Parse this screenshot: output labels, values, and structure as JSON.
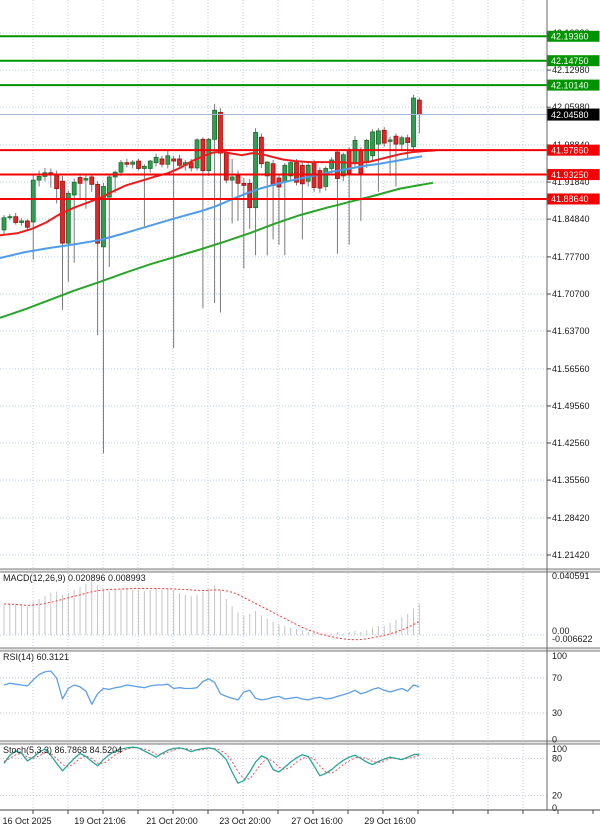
{
  "colors": {
    "up_candle": "#2f9e4e",
    "up_border": "#1d6b2f",
    "down_candle": "#e02626",
    "down_border": "#9c1313",
    "wick": "#7a7a7a",
    "ma_fast": "#ef1c1c",
    "ma_mid": "#4f9bee",
    "ma_slow": "#28a428",
    "resistance": "#009500",
    "support": "#f50000",
    "price_line": "#aab8d8",
    "macd_bar": "#c4c4c4",
    "macd_signal": "#ff3838",
    "rsi_line": "#5e9fe8",
    "stoch_k": "#26a69a",
    "stoch_d": "#ff5050",
    "grid": "#b9ccec",
    "axis_text": "#1a1a1a",
    "badge_text": "#ffffff",
    "current_badge_bg": "#000000",
    "separator": "#e6e6e6",
    "separator_edge": "#7d7d7d"
  },
  "chart_data": [
    {
      "type": "candlestick",
      "x_labels": [
        "16 Oct 2025",
        "19 Oct 21:06",
        "21 Oct 20:00",
        "23 Oct 20:00",
        "27 Oct 16:00",
        "29 Oct 16:00"
      ],
      "y_ticks": [
        "42.19980",
        "42.12980",
        "42.05980",
        "41.98840",
        "41.91840",
        "41.84840",
        "41.77700",
        "41.70700",
        "41.63700",
        "41.56560",
        "41.49560",
        "41.42560",
        "41.35560",
        "41.28420",
        "41.21420"
      ],
      "resistance_lines": [
        {
          "label": "42.19360",
          "price": 42.1936
        },
        {
          "label": "42.14750",
          "price": 42.1475
        },
        {
          "label": "42.10140",
          "price": 42.1014
        }
      ],
      "support_lines": [
        {
          "label": "41.97860",
          "price": 41.9786
        },
        {
          "label": "41.93250",
          "price": 41.9325
        },
        {
          "label": "41.88640",
          "price": 41.8864
        }
      ],
      "current_price": {
        "label": "42.04580",
        "price": 42.0458
      },
      "candles": [
        [
          41.828,
          41.856,
          41.82,
          41.851
        ],
        [
          41.851,
          41.858,
          41.846,
          41.853
        ],
        [
          41.853,
          41.86,
          41.838,
          41.842
        ],
        [
          41.842,
          41.85,
          41.836,
          41.845
        ],
        [
          41.845,
          41.848,
          41.828,
          41.833
        ],
        [
          41.843,
          41.932,
          41.772,
          41.922
        ],
        [
          41.922,
          41.94,
          41.91,
          41.929
        ],
        [
          41.929,
          41.945,
          41.92,
          41.936
        ],
        [
          41.936,
          41.944,
          41.908,
          41.933
        ],
        [
          41.933,
          41.94,
          41.878,
          41.906
        ],
        [
          41.92,
          41.93,
          41.677,
          41.803
        ],
        [
          41.803,
          41.902,
          41.73,
          41.897
        ],
        [
          41.894,
          41.925,
          41.766,
          41.918
        ],
        [
          41.927,
          41.935,
          41.888,
          41.916
        ],
        [
          41.922,
          41.932,
          41.868,
          41.925
        ],
        [
          41.928,
          41.934,
          41.9,
          41.914
        ],
        [
          41.914,
          41.92,
          41.629,
          41.803
        ],
        [
          41.796,
          41.917,
          41.406,
          41.91
        ],
        [
          41.89,
          41.932,
          41.758,
          41.928
        ],
        [
          41.928,
          41.94,
          41.898,
          41.937
        ],
        [
          41.937,
          41.96,
          41.93,
          41.955
        ],
        [
          41.955,
          41.962,
          41.946,
          41.952
        ],
        [
          41.952,
          41.96,
          41.944,
          41.956
        ],
        [
          41.958,
          41.963,
          41.94,
          41.944
        ],
        [
          41.944,
          41.952,
          41.835,
          41.948
        ],
        [
          41.944,
          41.96,
          41.936,
          41.958
        ],
        [
          41.955,
          41.972,
          41.948,
          41.965
        ],
        [
          41.962,
          41.968,
          41.946,
          41.952
        ],
        [
          41.952,
          41.978,
          41.944,
          41.968
        ],
        [
          41.962,
          41.968,
          41.605,
          41.958
        ],
        [
          41.962,
          41.97,
          41.944,
          41.95
        ],
        [
          41.95,
          41.96,
          41.94,
          41.955
        ],
        [
          41.955,
          41.962,
          41.938,
          41.945
        ],
        [
          41.945,
          42.001,
          41.94,
          41.998
        ],
        [
          41.999,
          42.003,
          41.68,
          41.94
        ],
        [
          41.94,
          42.002,
          41.93,
          41.999
        ],
        [
          41.999,
          42.066,
          41.69,
          42.054
        ],
        [
          42.05,
          42.058,
          41.672,
          41.973
        ],
        [
          41.973,
          41.98,
          41.916,
          41.922
        ],
        [
          41.922,
          41.962,
          41.84,
          41.928
        ],
        [
          41.93,
          41.94,
          41.845,
          41.916
        ],
        [
          41.916,
          41.926,
          41.755,
          41.912
        ],
        [
          41.916,
          41.924,
          41.83,
          41.87
        ],
        [
          41.87,
          42.02,
          41.78,
          42.012
        ],
        [
          42.003,
          42.01,
          41.945,
          41.953
        ],
        [
          41.93,
          41.958,
          41.78,
          41.956
        ],
        [
          41.953,
          41.96,
          41.81,
          41.912
        ],
        [
          41.926,
          41.932,
          41.8,
          41.909
        ],
        [
          41.918,
          41.954,
          41.78,
          41.95
        ],
        [
          41.93,
          41.96,
          41.922,
          41.955
        ],
        [
          41.955,
          41.962,
          41.912,
          41.918
        ],
        [
          41.95,
          41.956,
          41.81,
          41.915
        ],
        [
          41.92,
          41.954,
          41.91,
          41.95
        ],
        [
          41.955,
          41.96,
          41.9,
          41.908
        ],
        [
          41.94,
          41.946,
          41.898,
          41.907
        ],
        [
          41.91,
          41.948,
          41.902,
          41.944
        ],
        [
          41.944,
          41.965,
          41.935,
          41.96
        ],
        [
          41.975,
          41.98,
          41.783,
          41.925
        ],
        [
          41.93,
          41.974,
          41.92,
          41.97
        ],
        [
          41.978,
          41.984,
          41.8,
          41.935
        ],
        [
          41.955,
          42.005,
          41.945,
          41.997
        ],
        [
          41.978,
          41.984,
          41.845,
          41.935
        ],
        [
          41.955,
          42.0,
          41.945,
          41.997
        ],
        [
          41.968,
          42.018,
          41.958,
          42.013
        ],
        [
          41.99,
          42.02,
          41.9,
          42.015
        ],
        [
          42.016,
          42.022,
          41.985,
          41.992
        ],
        [
          41.995,
          42.004,
          41.93,
          41.998
        ],
        [
          42.005,
          42.01,
          41.91,
          41.99
        ],
        [
          41.99,
          42.006,
          41.98,
          42.002
        ],
        [
          42.002,
          42.008,
          41.962,
          41.993
        ],
        [
          41.985,
          42.083,
          41.978,
          42.077
        ],
        [
          42.073,
          42.078,
          42.01,
          42.046
        ]
      ],
      "ma_fast_red": [
        [
          0,
          41.818
        ],
        [
          18,
          41.822
        ],
        [
          32,
          41.83
        ],
        [
          46,
          41.842
        ],
        [
          60,
          41.858
        ],
        [
          74,
          41.87
        ],
        [
          88,
          41.88
        ],
        [
          100,
          41.888
        ],
        [
          112,
          41.9
        ],
        [
          126,
          41.912
        ],
        [
          140,
          41.92
        ],
        [
          154,
          41.928
        ],
        [
          168,
          41.935
        ],
        [
          180,
          41.945
        ],
        [
          192,
          41.958
        ],
        [
          204,
          41.968
        ],
        [
          213,
          41.974
        ],
        [
          222,
          41.976
        ],
        [
          232,
          41.972
        ],
        [
          242,
          41.969
        ],
        [
          252,
          41.973
        ],
        [
          262,
          41.971
        ],
        [
          272,
          41.966
        ],
        [
          283,
          41.961
        ],
        [
          295,
          41.958
        ],
        [
          310,
          41.956
        ],
        [
          325,
          41.956
        ],
        [
          340,
          41.956
        ],
        [
          355,
          41.954
        ],
        [
          370,
          41.957
        ],
        [
          385,
          41.964
        ],
        [
          400,
          41.971
        ],
        [
          412,
          41.975
        ],
        [
          425,
          41.977
        ],
        [
          435,
          41.978
        ]
      ],
      "ma_mid_blue": [
        [
          0,
          41.775
        ],
        [
          25,
          41.786
        ],
        [
          50,
          41.794
        ],
        [
          75,
          41.801
        ],
        [
          100,
          41.809
        ],
        [
          125,
          41.822
        ],
        [
          150,
          41.836
        ],
        [
          175,
          41.85
        ],
        [
          200,
          41.863
        ],
        [
          215,
          41.872
        ],
        [
          230,
          41.884
        ],
        [
          245,
          41.896
        ],
        [
          260,
          41.906
        ],
        [
          275,
          41.914
        ],
        [
          290,
          41.921
        ],
        [
          305,
          41.927
        ],
        [
          320,
          41.933
        ],
        [
          335,
          41.939
        ],
        [
          350,
          41.944
        ],
        [
          365,
          41.949
        ],
        [
          380,
          41.953
        ],
        [
          395,
          41.958
        ],
        [
          410,
          41.963
        ],
        [
          422,
          41.967
        ]
      ],
      "ma_slow_green": [
        [
          0,
          41.662
        ],
        [
          25,
          41.678
        ],
        [
          50,
          41.696
        ],
        [
          75,
          41.714
        ],
        [
          100,
          41.73
        ],
        [
          125,
          41.747
        ],
        [
          150,
          41.763
        ],
        [
          175,
          41.777
        ],
        [
          200,
          41.791
        ],
        [
          225,
          41.806
        ],
        [
          250,
          41.822
        ],
        [
          275,
          41.84
        ],
        [
          300,
          41.856
        ],
        [
          325,
          41.869
        ],
        [
          350,
          41.881
        ],
        [
          375,
          41.893
        ],
        [
          400,
          41.906
        ],
        [
          418,
          41.912
        ],
        [
          433,
          41.917
        ]
      ]
    },
    {
      "type": "bar",
      "name": "MACD",
      "label": "MACD(12,26,9) 0.020896 0.008993",
      "axis_labels": [
        "0.040591",
        "0.00",
        "-0.006622"
      ],
      "histogram": [
        0.02,
        0.021,
        0.021,
        0.02,
        0.019,
        0.022,
        0.024,
        0.026,
        0.028,
        0.029,
        0.027,
        0.028,
        0.03,
        0.032,
        0.034,
        0.036,
        0.033,
        0.03,
        0.029,
        0.03,
        0.031,
        0.031,
        0.03,
        0.03,
        0.029,
        0.03,
        0.031,
        0.03,
        0.031,
        0.03,
        0.028,
        0.027,
        0.026,
        0.027,
        0.029,
        0.031,
        0.033,
        0.03,
        0.024,
        0.019,
        0.015,
        0.013,
        0.014,
        0.016,
        0.013,
        0.011,
        0.009,
        0.007,
        0.006,
        0.005,
        0.004,
        0.003,
        0.002,
        0.0015,
        0.001,
        0.001,
        0.001,
        0.002,
        0.001,
        0.002,
        0.003,
        0.002,
        0.003,
        0.005,
        0.006,
        0.006,
        0.008,
        0.01,
        0.012,
        0.014,
        0.018,
        0.021
      ],
      "signal": [
        0.0207,
        0.0206,
        0.0204,
        0.02,
        0.0198,
        0.0199,
        0.0203,
        0.021,
        0.0218,
        0.0228,
        0.0238,
        0.0248,
        0.0258,
        0.0268,
        0.0278,
        0.0288,
        0.0295,
        0.03,
        0.0303,
        0.0305,
        0.0307,
        0.0308,
        0.0309,
        0.031,
        0.031,
        0.031,
        0.031,
        0.0309,
        0.0308,
        0.0307,
        0.0305,
        0.0303,
        0.03,
        0.0298,
        0.0297,
        0.0298,
        0.03,
        0.03,
        0.0295,
        0.0285,
        0.027,
        0.025,
        0.023,
        0.021,
        0.019,
        0.017,
        0.015,
        0.013,
        0.011,
        0.009,
        0.007,
        0.005,
        0.0035,
        0.002,
        0.0008,
        -0.0002,
        -0.0012,
        -0.002,
        -0.0025,
        -0.003,
        -0.0032,
        -0.003,
        -0.0025,
        -0.0018,
        -0.001,
        -0.0002,
        0.0008,
        0.002,
        0.0035,
        0.005,
        0.007,
        0.009
      ]
    },
    {
      "type": "line",
      "name": "RSI",
      "label": "RSI(14) 60.3121",
      "axis_labels": [
        "100",
        "70",
        "30",
        "0"
      ],
      "levels": [
        70,
        30
      ],
      "values": [
        62,
        64,
        63,
        62,
        61,
        68,
        74,
        77,
        78,
        70,
        46,
        58,
        62,
        60,
        55,
        40,
        52,
        58,
        57,
        59,
        60,
        62,
        61,
        60,
        59,
        61,
        62,
        62,
        63,
        58,
        59,
        58,
        58,
        59,
        66,
        69,
        65,
        52,
        49,
        47,
        45,
        54,
        56,
        47,
        45,
        46,
        48,
        49,
        46,
        47,
        48,
        46,
        45,
        47,
        48,
        46,
        47,
        49,
        51,
        53,
        56,
        52,
        54,
        57,
        59,
        56,
        54,
        56,
        58,
        55,
        62,
        60
      ]
    },
    {
      "type": "line",
      "name": "Stochastic",
      "label": "Stoch(5,3,3) 86.7868 84.5204",
      "axis_labels": [
        "100",
        "80",
        "20",
        "0"
      ],
      "levels": [
        80,
        20
      ],
      "k": [
        72,
        85,
        92,
        88,
        76,
        82,
        90,
        95,
        85,
        72,
        60,
        70,
        80,
        88,
        83,
        75,
        68,
        78,
        86,
        92,
        95,
        97,
        98,
        97,
        92,
        87,
        82,
        88,
        93,
        96,
        97,
        95,
        91,
        94,
        96,
        97,
        95,
        88,
        78,
        58,
        40,
        44,
        58,
        74,
        84,
        80,
        62,
        58,
        66,
        74,
        81,
        86,
        83,
        68,
        52,
        56,
        62,
        70,
        77,
        82,
        85,
        80,
        74,
        70,
        75,
        79,
        82,
        80,
        78,
        82,
        86,
        87
      ],
      "d": [
        75,
        80,
        86,
        88,
        82,
        80,
        84,
        89,
        88,
        80,
        70,
        66,
        72,
        80,
        84,
        80,
        72,
        72,
        78,
        86,
        91,
        95,
        97,
        97,
        95,
        92,
        87,
        86,
        90,
        93,
        96,
        96,
        94,
        93,
        94,
        96,
        96,
        93,
        87,
        75,
        59,
        47,
        47,
        59,
        72,
        80,
        75,
        66,
        62,
        66,
        74,
        80,
        83,
        79,
        68,
        58,
        56,
        62,
        70,
        76,
        81,
        82,
        80,
        75,
        73,
        76,
        80,
        80,
        79,
        80,
        82,
        85
      ]
    }
  ]
}
